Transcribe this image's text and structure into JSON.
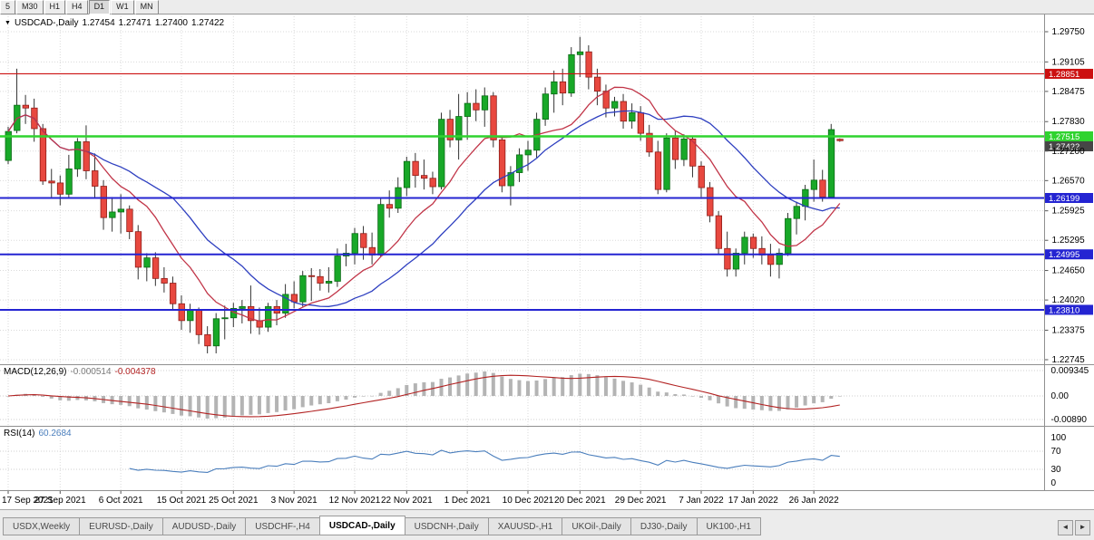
{
  "toolbar": {
    "timeframes": [
      "5",
      "M30",
      "H1",
      "H4",
      "D1",
      "W1",
      "MN"
    ],
    "active": "D1"
  },
  "chart": {
    "title": {
      "symbol": "USDCAD-,Daily",
      "open": "1.27454",
      "high": "1.27471",
      "low": "1.27400",
      "close": "1.27422"
    }
  },
  "price_axis": {
    "labels": [
      "1.29750",
      "1.29105",
      "1.28475",
      "1.27830",
      "1.27200",
      "1.26570",
      "1.25925",
      "1.25295",
      "1.24650",
      "1.24020",
      "1.23375",
      "1.22745"
    ]
  },
  "levels": [
    {
      "label": "1.28851",
      "price": 1.28851,
      "color": "#cc1111",
      "width": 1.2
    },
    {
      "label": "1.27515",
      "price": 1.27515,
      "color": "#2fd32f",
      "width": 2.4
    },
    {
      "label": "1.26199",
      "price": 1.26199,
      "color": "#2424d2",
      "width": 2
    },
    {
      "label": "1.24995",
      "price": 1.24995,
      "color": "#2424d2",
      "width": 2
    },
    {
      "label": "1.23810",
      "price": 1.2381,
      "color": "#2424d2",
      "width": 2
    }
  ],
  "current_price": {
    "label": "1.27422",
    "value": 1.27422,
    "bg": "#464646"
  },
  "macd": {
    "name": "MACD(12,26,9)",
    "main": "-0.000514",
    "signal": "-0.004378",
    "axis_labels": [
      "0.009345",
      "0.00",
      "-0.00890"
    ]
  },
  "rsi": {
    "name": "RSI(14)",
    "value": "60.2684",
    "axis_labels": [
      "100",
      "70",
      "30",
      "0"
    ]
  },
  "date_axis": {
    "labels": [
      {
        "text": "17 Sep 2021",
        "i": 0
      },
      {
        "text": "27 Sep 2021",
        "i": 6
      },
      {
        "text": "6 Oct 2021",
        "i": 13
      },
      {
        "text": "15 Oct 2021",
        "i": 20
      },
      {
        "text": "25 Oct 2021",
        "i": 26
      },
      {
        "text": "3 Nov 2021",
        "i": 33
      },
      {
        "text": "12 Nov 2021",
        "i": 40
      },
      {
        "text": "22 Nov 2021",
        "i": 46
      },
      {
        "text": "1 Dec 2021",
        "i": 53
      },
      {
        "text": "10 Dec 2021",
        "i": 60
      },
      {
        "text": "20 Dec 2021",
        "i": 66
      },
      {
        "text": "29 Dec 2021",
        "i": 73
      },
      {
        "text": "7 Jan 2022",
        "i": 80
      },
      {
        "text": "17 Jan 2022",
        "i": 86
      },
      {
        "text": "26 Jan 2022",
        "i": 93
      }
    ]
  },
  "tabs": {
    "items": [
      {
        "label": "USDX,Weekly",
        "active": false
      },
      {
        "label": "EURUSD-,Daily",
        "active": false
      },
      {
        "label": "AUDUSD-,Daily",
        "active": false
      },
      {
        "label": "USDCHF-,H4",
        "active": false
      },
      {
        "label": "USDCAD-,Daily",
        "active": true
      },
      {
        "label": "USDCNH-,Daily",
        "active": false
      },
      {
        "label": "XAUUSD-,H1",
        "active": false
      },
      {
        "label": "UKOil-,Daily",
        "active": false
      },
      {
        "label": "DJ30-,Daily",
        "active": false
      },
      {
        "label": "UK100-,H1",
        "active": false
      }
    ],
    "scroll_left_icon": "◄",
    "scroll_right_icon": "►"
  },
  "chart_data": {
    "type": "candlestick",
    "title": "USDCAD-,Daily",
    "colors": {
      "bull": "#18a828",
      "bear": "#e8483f",
      "bull_border": "#0a6a14",
      "bear_border": "#8f1d18",
      "wick": "#333333"
    },
    "ma_fast": {
      "period": 10,
      "color": "#c13548"
    },
    "ma_slow": {
      "period": 20,
      "color": "#2e3fc0"
    },
    "macd": {
      "fast": 12,
      "slow": 26,
      "signal": 9,
      "histogram_color": "#b4b4b4",
      "signal_color": "#b22222"
    },
    "rsi": {
      "period": 14,
      "color": "#4a7ebc"
    },
    "candles": [
      [
        1.27,
        1.2772,
        1.2692,
        1.2762
      ],
      [
        1.2764,
        1.2896,
        1.2758,
        1.2818
      ],
      [
        1.2818,
        1.284,
        1.2778,
        1.2812
      ],
      [
        1.2812,
        1.2832,
        1.274,
        1.2768
      ],
      [
        1.2768,
        1.2778,
        1.2648,
        1.2656
      ],
      [
        1.2656,
        1.2682,
        1.2618,
        1.2652
      ],
      [
        1.2652,
        1.2668,
        1.2604,
        1.2628
      ],
      [
        1.2628,
        1.2712,
        1.2618,
        1.2682
      ],
      [
        1.2682,
        1.2748,
        1.2665,
        1.274
      ],
      [
        1.274,
        1.2775,
        1.266,
        1.2678
      ],
      [
        1.2678,
        1.2715,
        1.262,
        1.2645
      ],
      [
        1.2645,
        1.2658,
        1.2552,
        1.2578
      ],
      [
        1.2578,
        1.2622,
        1.2548,
        1.259
      ],
      [
        1.259,
        1.2628,
        1.2544,
        1.2596
      ],
      [
        1.2596,
        1.2604,
        1.2532,
        1.2548
      ],
      [
        1.2548,
        1.2562,
        1.2446,
        1.2472
      ],
      [
        1.2472,
        1.2502,
        1.2442,
        1.2492
      ],
      [
        1.2492,
        1.2504,
        1.2432,
        1.2448
      ],
      [
        1.2448,
        1.2472,
        1.2418,
        1.2438
      ],
      [
        1.2438,
        1.2452,
        1.2382,
        1.2394
      ],
      [
        1.2394,
        1.2412,
        1.2338,
        1.2358
      ],
      [
        1.2358,
        1.2394,
        1.2332,
        1.238
      ],
      [
        1.238,
        1.2386,
        1.2308,
        1.2328
      ],
      [
        1.2328,
        1.2346,
        1.2288,
        1.2304
      ],
      [
        1.2304,
        1.2374,
        1.2288,
        1.2362
      ],
      [
        1.2362,
        1.239,
        1.2318,
        1.2364
      ],
      [
        1.2364,
        1.2396,
        1.2344,
        1.2384
      ],
      [
        1.2384,
        1.2402,
        1.2352,
        1.2388
      ],
      [
        1.2388,
        1.2433,
        1.233,
        1.2358
      ],
      [
        1.2358,
        1.2386,
        1.2328,
        1.2344
      ],
      [
        1.2344,
        1.2396,
        1.2334,
        1.2388
      ],
      [
        1.2388,
        1.2402,
        1.2348,
        1.2374
      ],
      [
        1.2374,
        1.2436,
        1.2364,
        1.2414
      ],
      [
        1.2414,
        1.2442,
        1.2384,
        1.2398
      ],
      [
        1.2398,
        1.2464,
        1.2388,
        1.2454
      ],
      [
        1.2454,
        1.247,
        1.24,
        1.2452
      ],
      [
        1.2452,
        1.2468,
        1.2422,
        1.2438
      ],
      [
        1.2438,
        1.2472,
        1.2418,
        1.2442
      ],
      [
        1.2442,
        1.2512,
        1.243,
        1.2496
      ],
      [
        1.2496,
        1.2522,
        1.2474,
        1.2502
      ],
      [
        1.2502,
        1.2556,
        1.2478,
        1.2544
      ],
      [
        1.2544,
        1.256,
        1.2488,
        1.2514
      ],
      [
        1.2514,
        1.2546,
        1.2478,
        1.2498
      ],
      [
        1.2498,
        1.2618,
        1.2494,
        1.2606
      ],
      [
        1.2606,
        1.2636,
        1.2578,
        1.2598
      ],
      [
        1.2598,
        1.2664,
        1.2588,
        1.2642
      ],
      [
        1.2642,
        1.2708,
        1.2624,
        1.2698
      ],
      [
        1.2698,
        1.2716,
        1.2642,
        1.2668
      ],
      [
        1.2668,
        1.2702,
        1.2638,
        1.2662
      ],
      [
        1.2662,
        1.2676,
        1.2628,
        1.2644
      ],
      [
        1.2644,
        1.2802,
        1.2638,
        1.2788
      ],
      [
        1.2788,
        1.2808,
        1.2728,
        1.2744
      ],
      [
        1.2744,
        1.2842,
        1.2702,
        1.2794
      ],
      [
        1.2794,
        1.2846,
        1.2744,
        1.2822
      ],
      [
        1.2822,
        1.2852,
        1.2784,
        1.2808
      ],
      [
        1.2808,
        1.2856,
        1.2772,
        1.2838
      ],
      [
        1.2838,
        1.2846,
        1.2728,
        1.2744
      ],
      [
        1.2744,
        1.2752,
        1.2632,
        1.2646
      ],
      [
        1.2646,
        1.2688,
        1.2604,
        1.2674
      ],
      [
        1.2674,
        1.2726,
        1.2654,
        1.2712
      ],
      [
        1.2712,
        1.2742,
        1.2678,
        1.2722
      ],
      [
        1.2722,
        1.2802,
        1.2706,
        1.2788
      ],
      [
        1.2788,
        1.2856,
        1.2774,
        1.2842
      ],
      [
        1.2842,
        1.2892,
        1.2802,
        1.2868
      ],
      [
        1.2868,
        1.2896,
        1.2818,
        1.2844
      ],
      [
        1.2844,
        1.2942,
        1.2836,
        1.2926
      ],
      [
        1.2926,
        1.2964,
        1.2878,
        1.2932
      ],
      [
        1.2932,
        1.2946,
        1.2852,
        1.2878
      ],
      [
        1.2878,
        1.2896,
        1.2818,
        1.2848
      ],
      [
        1.2848,
        1.2862,
        1.2792,
        1.2812
      ],
      [
        1.2812,
        1.2836,
        1.2794,
        1.2826
      ],
      [
        1.2826,
        1.2842,
        1.2768,
        1.2784
      ],
      [
        1.2784,
        1.2822,
        1.2768,
        1.2802
      ],
      [
        1.2802,
        1.2816,
        1.2742,
        1.2758
      ],
      [
        1.2758,
        1.2776,
        1.2708,
        1.2718
      ],
      [
        1.2718,
        1.2742,
        1.2628,
        1.2638
      ],
      [
        1.2638,
        1.2758,
        1.2632,
        1.2748
      ],
      [
        1.2748,
        1.2764,
        1.2682,
        1.2702
      ],
      [
        1.2702,
        1.2756,
        1.2688,
        1.2746
      ],
      [
        1.2746,
        1.2752,
        1.2664,
        1.2688
      ],
      [
        1.2688,
        1.2698,
        1.2622,
        1.2642
      ],
      [
        1.2642,
        1.2654,
        1.2568,
        1.2582
      ],
      [
        1.2582,
        1.2592,
        1.2498,
        1.2512
      ],
      [
        1.2512,
        1.2548,
        1.2452,
        1.2468
      ],
      [
        1.2468,
        1.2512,
        1.2452,
        1.2502
      ],
      [
        1.2502,
        1.2548,
        1.2478,
        1.2536
      ],
      [
        1.2536,
        1.2544,
        1.2492,
        1.2512
      ],
      [
        1.2512,
        1.2538,
        1.2478,
        1.2498
      ],
      [
        1.2498,
        1.2522,
        1.2452,
        1.2478
      ],
      [
        1.2478,
        1.2512,
        1.2448,
        1.2502
      ],
      [
        1.2502,
        1.2588,
        1.2496,
        1.2576
      ],
      [
        1.2576,
        1.2612,
        1.2542,
        1.2602
      ],
      [
        1.2602,
        1.2648,
        1.2572,
        1.2638
      ],
      [
        1.2638,
        1.2702,
        1.2612,
        1.2658
      ],
      [
        1.2658,
        1.268,
        1.2612,
        1.2622
      ],
      [
        1.2622,
        1.2778,
        1.2618,
        1.2766
      ],
      [
        1.27454,
        1.27471,
        1.274,
        1.27422
      ]
    ]
  }
}
